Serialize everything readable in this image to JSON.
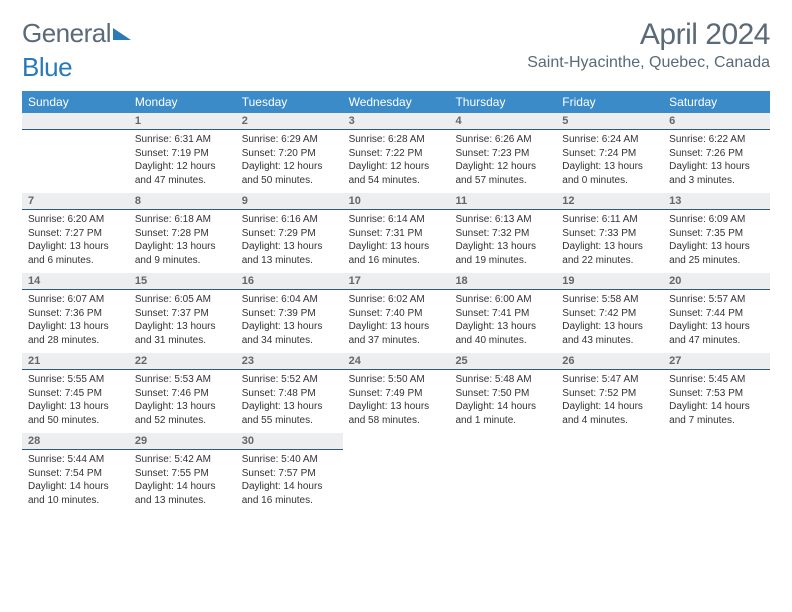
{
  "logo": {
    "part1": "General",
    "part2": "Blue"
  },
  "title": "April 2024",
  "location": "Saint-Hyacinthe, Quebec, Canada",
  "colors": {
    "header_bg": "#3b8bc9",
    "header_text": "#ffffff",
    "daynum_bg": "#edeeef",
    "daynum_border": "#2a5a8a",
    "body_text": "#333333",
    "title_text": "#5a6a78",
    "logo_gray": "#5a6a78",
    "logo_blue": "#2a7ab8",
    "page_bg": "#ffffff"
  },
  "weekdays": [
    "Sunday",
    "Monday",
    "Tuesday",
    "Wednesday",
    "Thursday",
    "Friday",
    "Saturday"
  ],
  "weeks": [
    [
      {
        "num": "",
        "sunrise": "",
        "sunset": "",
        "daylight": ""
      },
      {
        "num": "1",
        "sunrise": "Sunrise: 6:31 AM",
        "sunset": "Sunset: 7:19 PM",
        "daylight": "Daylight: 12 hours and 47 minutes."
      },
      {
        "num": "2",
        "sunrise": "Sunrise: 6:29 AM",
        "sunset": "Sunset: 7:20 PM",
        "daylight": "Daylight: 12 hours and 50 minutes."
      },
      {
        "num": "3",
        "sunrise": "Sunrise: 6:28 AM",
        "sunset": "Sunset: 7:22 PM",
        "daylight": "Daylight: 12 hours and 54 minutes."
      },
      {
        "num": "4",
        "sunrise": "Sunrise: 6:26 AM",
        "sunset": "Sunset: 7:23 PM",
        "daylight": "Daylight: 12 hours and 57 minutes."
      },
      {
        "num": "5",
        "sunrise": "Sunrise: 6:24 AM",
        "sunset": "Sunset: 7:24 PM",
        "daylight": "Daylight: 13 hours and 0 minutes."
      },
      {
        "num": "6",
        "sunrise": "Sunrise: 6:22 AM",
        "sunset": "Sunset: 7:26 PM",
        "daylight": "Daylight: 13 hours and 3 minutes."
      }
    ],
    [
      {
        "num": "7",
        "sunrise": "Sunrise: 6:20 AM",
        "sunset": "Sunset: 7:27 PM",
        "daylight": "Daylight: 13 hours and 6 minutes."
      },
      {
        "num": "8",
        "sunrise": "Sunrise: 6:18 AM",
        "sunset": "Sunset: 7:28 PM",
        "daylight": "Daylight: 13 hours and 9 minutes."
      },
      {
        "num": "9",
        "sunrise": "Sunrise: 6:16 AM",
        "sunset": "Sunset: 7:29 PM",
        "daylight": "Daylight: 13 hours and 13 minutes."
      },
      {
        "num": "10",
        "sunrise": "Sunrise: 6:14 AM",
        "sunset": "Sunset: 7:31 PM",
        "daylight": "Daylight: 13 hours and 16 minutes."
      },
      {
        "num": "11",
        "sunrise": "Sunrise: 6:13 AM",
        "sunset": "Sunset: 7:32 PM",
        "daylight": "Daylight: 13 hours and 19 minutes."
      },
      {
        "num": "12",
        "sunrise": "Sunrise: 6:11 AM",
        "sunset": "Sunset: 7:33 PM",
        "daylight": "Daylight: 13 hours and 22 minutes."
      },
      {
        "num": "13",
        "sunrise": "Sunrise: 6:09 AM",
        "sunset": "Sunset: 7:35 PM",
        "daylight": "Daylight: 13 hours and 25 minutes."
      }
    ],
    [
      {
        "num": "14",
        "sunrise": "Sunrise: 6:07 AM",
        "sunset": "Sunset: 7:36 PM",
        "daylight": "Daylight: 13 hours and 28 minutes."
      },
      {
        "num": "15",
        "sunrise": "Sunrise: 6:05 AM",
        "sunset": "Sunset: 7:37 PM",
        "daylight": "Daylight: 13 hours and 31 minutes."
      },
      {
        "num": "16",
        "sunrise": "Sunrise: 6:04 AM",
        "sunset": "Sunset: 7:39 PM",
        "daylight": "Daylight: 13 hours and 34 minutes."
      },
      {
        "num": "17",
        "sunrise": "Sunrise: 6:02 AM",
        "sunset": "Sunset: 7:40 PM",
        "daylight": "Daylight: 13 hours and 37 minutes."
      },
      {
        "num": "18",
        "sunrise": "Sunrise: 6:00 AM",
        "sunset": "Sunset: 7:41 PM",
        "daylight": "Daylight: 13 hours and 40 minutes."
      },
      {
        "num": "19",
        "sunrise": "Sunrise: 5:58 AM",
        "sunset": "Sunset: 7:42 PM",
        "daylight": "Daylight: 13 hours and 43 minutes."
      },
      {
        "num": "20",
        "sunrise": "Sunrise: 5:57 AM",
        "sunset": "Sunset: 7:44 PM",
        "daylight": "Daylight: 13 hours and 47 minutes."
      }
    ],
    [
      {
        "num": "21",
        "sunrise": "Sunrise: 5:55 AM",
        "sunset": "Sunset: 7:45 PM",
        "daylight": "Daylight: 13 hours and 50 minutes."
      },
      {
        "num": "22",
        "sunrise": "Sunrise: 5:53 AM",
        "sunset": "Sunset: 7:46 PM",
        "daylight": "Daylight: 13 hours and 52 minutes."
      },
      {
        "num": "23",
        "sunrise": "Sunrise: 5:52 AM",
        "sunset": "Sunset: 7:48 PM",
        "daylight": "Daylight: 13 hours and 55 minutes."
      },
      {
        "num": "24",
        "sunrise": "Sunrise: 5:50 AM",
        "sunset": "Sunset: 7:49 PM",
        "daylight": "Daylight: 13 hours and 58 minutes."
      },
      {
        "num": "25",
        "sunrise": "Sunrise: 5:48 AM",
        "sunset": "Sunset: 7:50 PM",
        "daylight": "Daylight: 14 hours and 1 minute."
      },
      {
        "num": "26",
        "sunrise": "Sunrise: 5:47 AM",
        "sunset": "Sunset: 7:52 PM",
        "daylight": "Daylight: 14 hours and 4 minutes."
      },
      {
        "num": "27",
        "sunrise": "Sunrise: 5:45 AM",
        "sunset": "Sunset: 7:53 PM",
        "daylight": "Daylight: 14 hours and 7 minutes."
      }
    ],
    [
      {
        "num": "28",
        "sunrise": "Sunrise: 5:44 AM",
        "sunset": "Sunset: 7:54 PM",
        "daylight": "Daylight: 14 hours and 10 minutes."
      },
      {
        "num": "29",
        "sunrise": "Sunrise: 5:42 AM",
        "sunset": "Sunset: 7:55 PM",
        "daylight": "Daylight: 14 hours and 13 minutes."
      },
      {
        "num": "30",
        "sunrise": "Sunrise: 5:40 AM",
        "sunset": "Sunset: 7:57 PM",
        "daylight": "Daylight: 14 hours and 16 minutes."
      },
      {
        "num": "",
        "sunrise": "",
        "sunset": "",
        "daylight": ""
      },
      {
        "num": "",
        "sunrise": "",
        "sunset": "",
        "daylight": ""
      },
      {
        "num": "",
        "sunrise": "",
        "sunset": "",
        "daylight": ""
      },
      {
        "num": "",
        "sunrise": "",
        "sunset": "",
        "daylight": ""
      }
    ]
  ]
}
